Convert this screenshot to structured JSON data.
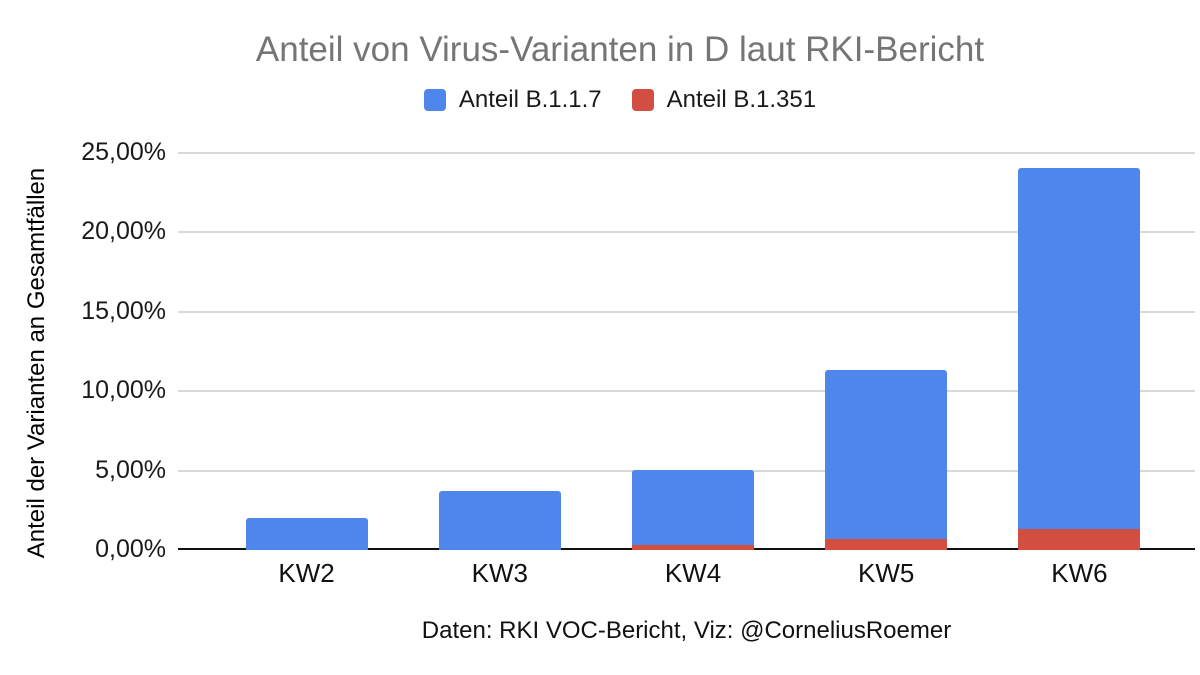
{
  "title": "Anteil von Virus-Varianten in D laut RKI-Bericht",
  "legend": [
    {
      "label": "Anteil B.1.1.7",
      "color": "#4e86ec"
    },
    {
      "label": "Anteil B.1.351",
      "color": "#d24e41"
    }
  ],
  "y_axis": {
    "title": "Anteil der Varianten an Gesamtfällen",
    "ticks": [
      "25,00%",
      "20,00%",
      "15,00%",
      "10,00%",
      "5,00%",
      "0,00%"
    ]
  },
  "footer": "Daten: RKI VOC-Bericht, Viz: @CorneliusRoemer",
  "colors": {
    "background": "#ffffff",
    "title_text": "#757575",
    "body_text": "#1a1a1a",
    "gridline": "#d9d9d9",
    "axis_line": "#111111",
    "series_b117": "#4e86ec",
    "series_b1351": "#d24e41"
  },
  "chart_data": {
    "type": "bar",
    "stacked": true,
    "categories": [
      "KW2",
      "KW3",
      "KW4",
      "KW5",
      "KW6"
    ],
    "series": [
      {
        "name": "Anteil B.1.1.7",
        "color": "#4e86ec",
        "values": [
          2.0,
          3.7,
          4.7,
          10.6,
          22.7
        ]
      },
      {
        "name": "Anteil B.1.351",
        "color": "#d24e41",
        "values": [
          0.0,
          0.0,
          0.3,
          0.7,
          1.3
        ]
      }
    ],
    "stacked_totals": [
      2.0,
      3.7,
      5.0,
      11.3,
      24.0
    ],
    "title": "Anteil von Virus-Varianten in D laut RKI-Bericht",
    "xlabel": "",
    "ylabel": "Anteil der Varianten an Gesamtfällen",
    "ylim": [
      0,
      25
    ],
    "y_tick_step": 5,
    "y_tick_format": "percent_comma_2dp",
    "grid": true,
    "legend_position": "top",
    "source_note": "Daten: RKI VOC-Bericht, Viz: @CorneliusRoemer"
  }
}
